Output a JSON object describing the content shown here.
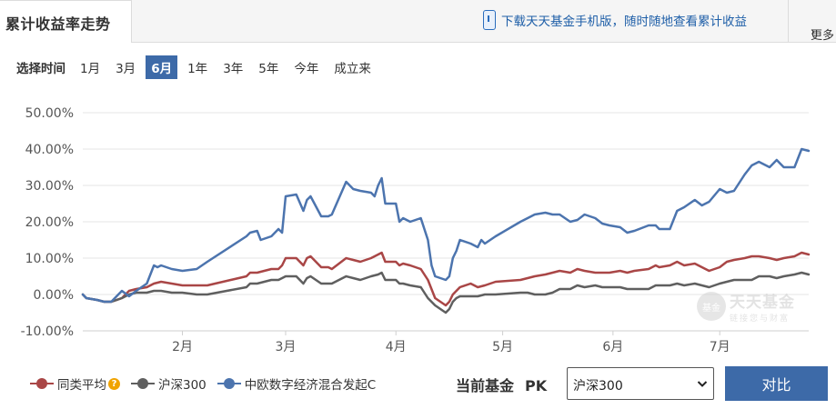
{
  "header": {
    "title": "累计收益率走势",
    "download_text": "下载天天基金手机版，随时随地查看累计收益",
    "more_label": "更多"
  },
  "timebar": {
    "label": "选择时间",
    "options": [
      "1月",
      "3月",
      "6月",
      "1年",
      "3年",
      "5年",
      "今年",
      "成立来"
    ],
    "selected": "6月"
  },
  "compare": {
    "current_label": "当前基金",
    "pk_label": "PK",
    "selected_index": "沪深300",
    "button_label": "对比"
  },
  "watermark": {
    "name": "天天基金",
    "logo": "基金",
    "slogan": "链接您与财富"
  },
  "colors": {
    "peer": "#a94646",
    "index": "#5f5f5f",
    "fund": "#4c74ae",
    "accent": "#3d6aa8"
  },
  "icons": {
    "download": "phone-icon",
    "help": "question-circle-icon",
    "dropdown": "chevron-down-icon"
  },
  "chart_data": {
    "type": "line",
    "x_type": "date",
    "xlim": [
      "2024-01-04",
      "2024-07-26"
    ],
    "ylim": [
      -10,
      50
    ],
    "ytick_step": 10,
    "yticks": [
      "-10.00%",
      "0.00%",
      "10.00%",
      "20.00%",
      "30.00%",
      "40.00%",
      "50.00%"
    ],
    "xticks": [
      {
        "label": "2月",
        "date": "2024-02-01"
      },
      {
        "label": "3月",
        "date": "2024-03-01"
      },
      {
        "label": "4月",
        "date": "2024-04-01"
      },
      {
        "label": "5月",
        "date": "2024-05-01"
      },
      {
        "label": "6月",
        "date": "2024-06-01"
      },
      {
        "label": "7月",
        "date": "2024-07-01"
      }
    ],
    "grid": true,
    "legend_position": "bottom-left",
    "series": [
      {
        "name": "同类平均",
        "color": "#a94646",
        "points": [
          [
            "2024-01-04",
            0
          ],
          [
            "2024-01-05",
            -1
          ],
          [
            "2024-01-08",
            -1.5
          ],
          [
            "2024-01-10",
            -2
          ],
          [
            "2024-01-12",
            -2
          ],
          [
            "2024-01-15",
            -1
          ],
          [
            "2024-01-17",
            1
          ],
          [
            "2024-01-19",
            1.5
          ],
          [
            "2024-01-22",
            2
          ],
          [
            "2024-01-24",
            3
          ],
          [
            "2024-01-26",
            3.5
          ],
          [
            "2024-01-29",
            3
          ],
          [
            "2024-02-01",
            2.5
          ],
          [
            "2024-02-05",
            2.5
          ],
          [
            "2024-02-08",
            2.5
          ],
          [
            "2024-02-19",
            5
          ],
          [
            "2024-02-20",
            6
          ],
          [
            "2024-02-22",
            6
          ],
          [
            "2024-02-26",
            7
          ],
          [
            "2024-02-28",
            7
          ],
          [
            "2024-02-29",
            8
          ],
          [
            "2024-03-01",
            10
          ],
          [
            "2024-03-04",
            10
          ],
          [
            "2024-03-06",
            8
          ],
          [
            "2024-03-07",
            10
          ],
          [
            "2024-03-08",
            10.5
          ],
          [
            "2024-03-11",
            7.5
          ],
          [
            "2024-03-13",
            7.5
          ],
          [
            "2024-03-14",
            7
          ],
          [
            "2024-03-18",
            10
          ],
          [
            "2024-03-20",
            9.5
          ],
          [
            "2024-03-22",
            9
          ],
          [
            "2024-03-25",
            10
          ],
          [
            "2024-03-27",
            11
          ],
          [
            "2024-03-28",
            11.5
          ],
          [
            "2024-03-29",
            9
          ],
          [
            "2024-04-01",
            9
          ],
          [
            "2024-04-02",
            8
          ],
          [
            "2024-04-03",
            8.5
          ],
          [
            "2024-04-05",
            8
          ],
          [
            "2024-04-08",
            7
          ],
          [
            "2024-04-10",
            4
          ],
          [
            "2024-04-12",
            -1
          ],
          [
            "2024-04-15",
            -3
          ],
          [
            "2024-04-16",
            -2
          ],
          [
            "2024-04-17",
            0
          ],
          [
            "2024-04-18",
            1
          ],
          [
            "2024-04-19",
            2
          ],
          [
            "2024-04-22",
            3
          ],
          [
            "2024-04-24",
            2
          ],
          [
            "2024-04-26",
            2.5
          ],
          [
            "2024-04-29",
            3.5
          ],
          [
            "2024-05-06",
            4
          ],
          [
            "2024-05-08",
            4.5
          ],
          [
            "2024-05-10",
            5
          ],
          [
            "2024-05-13",
            5.5
          ],
          [
            "2024-05-15",
            6
          ],
          [
            "2024-05-17",
            6.5
          ],
          [
            "2024-05-20",
            6
          ],
          [
            "2024-05-22",
            7
          ],
          [
            "2024-05-24",
            6.5
          ],
          [
            "2024-05-27",
            6
          ],
          [
            "2024-05-29",
            6
          ],
          [
            "2024-05-31",
            6
          ],
          [
            "2024-06-03",
            6.5
          ],
          [
            "2024-06-05",
            6
          ],
          [
            "2024-06-07",
            6.5
          ],
          [
            "2024-06-11",
            7
          ],
          [
            "2024-06-13",
            8
          ],
          [
            "2024-06-14",
            7.5
          ],
          [
            "2024-06-17",
            8
          ],
          [
            "2024-06-19",
            9
          ],
          [
            "2024-06-21",
            8
          ],
          [
            "2024-06-24",
            8.5
          ],
          [
            "2024-06-26",
            7.5
          ],
          [
            "2024-06-28",
            6.5
          ],
          [
            "2024-07-01",
            7.5
          ],
          [
            "2024-07-03",
            9
          ],
          [
            "2024-07-05",
            9.5
          ],
          [
            "2024-07-08",
            10
          ],
          [
            "2024-07-10",
            10.5
          ],
          [
            "2024-07-12",
            10.5
          ],
          [
            "2024-07-15",
            10
          ],
          [
            "2024-07-17",
            9.5
          ],
          [
            "2024-07-19",
            10
          ],
          [
            "2024-07-22",
            10.5
          ],
          [
            "2024-07-24",
            11.5
          ],
          [
            "2024-07-26",
            11
          ]
        ]
      },
      {
        "name": "沪深300",
        "color": "#5f5f5f",
        "points": [
          [
            "2024-01-04",
            0
          ],
          [
            "2024-01-05",
            -1
          ],
          [
            "2024-01-08",
            -1.5
          ],
          [
            "2024-01-10",
            -2
          ],
          [
            "2024-01-12",
            -2
          ],
          [
            "2024-01-15",
            -1
          ],
          [
            "2024-01-17",
            0
          ],
          [
            "2024-01-19",
            0.5
          ],
          [
            "2024-01-22",
            0.5
          ],
          [
            "2024-01-24",
            1
          ],
          [
            "2024-01-26",
            1
          ],
          [
            "2024-01-29",
            0.5
          ],
          [
            "2024-02-01",
            0.5
          ],
          [
            "2024-02-05",
            0
          ],
          [
            "2024-02-08",
            0
          ],
          [
            "2024-02-19",
            2
          ],
          [
            "2024-02-20",
            3
          ],
          [
            "2024-02-22",
            3
          ],
          [
            "2024-02-26",
            4
          ],
          [
            "2024-02-28",
            4
          ],
          [
            "2024-02-29",
            4.5
          ],
          [
            "2024-03-01",
            5
          ],
          [
            "2024-03-04",
            5
          ],
          [
            "2024-03-06",
            3
          ],
          [
            "2024-03-07",
            4.5
          ],
          [
            "2024-03-08",
            5
          ],
          [
            "2024-03-11",
            3
          ],
          [
            "2024-03-13",
            3
          ],
          [
            "2024-03-14",
            3
          ],
          [
            "2024-03-18",
            5
          ],
          [
            "2024-03-20",
            4.5
          ],
          [
            "2024-03-22",
            4
          ],
          [
            "2024-03-25",
            5
          ],
          [
            "2024-03-27",
            5.5
          ],
          [
            "2024-03-28",
            6
          ],
          [
            "2024-03-29",
            4
          ],
          [
            "2024-04-01",
            4
          ],
          [
            "2024-04-02",
            3
          ],
          [
            "2024-04-03",
            3
          ],
          [
            "2024-04-05",
            2.5
          ],
          [
            "2024-04-08",
            2
          ],
          [
            "2024-04-10",
            -1
          ],
          [
            "2024-04-12",
            -3
          ],
          [
            "2024-04-15",
            -5
          ],
          [
            "2024-04-16",
            -4
          ],
          [
            "2024-04-17",
            -2
          ],
          [
            "2024-04-18",
            -1
          ],
          [
            "2024-04-19",
            -0.5
          ],
          [
            "2024-04-22",
            -0.5
          ],
          [
            "2024-04-24",
            -0.5
          ],
          [
            "2024-04-26",
            0
          ],
          [
            "2024-04-29",
            0
          ],
          [
            "2024-05-06",
            0.5
          ],
          [
            "2024-05-08",
            0.5
          ],
          [
            "2024-05-10",
            0
          ],
          [
            "2024-05-13",
            0
          ],
          [
            "2024-05-15",
            0.5
          ],
          [
            "2024-05-17",
            1.5
          ],
          [
            "2024-05-20",
            1.5
          ],
          [
            "2024-05-22",
            2.5
          ],
          [
            "2024-05-24",
            2
          ],
          [
            "2024-05-27",
            2.5
          ],
          [
            "2024-05-29",
            2
          ],
          [
            "2024-05-31",
            2
          ],
          [
            "2024-06-03",
            2
          ],
          [
            "2024-06-05",
            1.5
          ],
          [
            "2024-06-07",
            1.5
          ],
          [
            "2024-06-11",
            1.5
          ],
          [
            "2024-06-13",
            2.5
          ],
          [
            "2024-06-14",
            2.5
          ],
          [
            "2024-06-17",
            2.5
          ],
          [
            "2024-06-19",
            3
          ],
          [
            "2024-06-21",
            2.5
          ],
          [
            "2024-06-24",
            3
          ],
          [
            "2024-06-26",
            2.5
          ],
          [
            "2024-06-28",
            2
          ],
          [
            "2024-07-01",
            3
          ],
          [
            "2024-07-03",
            3.5
          ],
          [
            "2024-07-05",
            4
          ],
          [
            "2024-07-08",
            4
          ],
          [
            "2024-07-10",
            4
          ],
          [
            "2024-07-12",
            5
          ],
          [
            "2024-07-15",
            5
          ],
          [
            "2024-07-17",
            4.5
          ],
          [
            "2024-07-19",
            5
          ],
          [
            "2024-07-22",
            5.5
          ],
          [
            "2024-07-24",
            6
          ],
          [
            "2024-07-26",
            5.5
          ]
        ]
      },
      {
        "name": "中欧数字经济混合发起C",
        "color": "#4c74ae",
        "points": [
          [
            "2024-01-04",
            0
          ],
          [
            "2024-01-05",
            -1
          ],
          [
            "2024-01-08",
            -1.5
          ],
          [
            "2024-01-10",
            -2
          ],
          [
            "2024-01-12",
            -2
          ],
          [
            "2024-01-15",
            1
          ],
          [
            "2024-01-17",
            -0.5
          ],
          [
            "2024-01-19",
            1
          ],
          [
            "2024-01-22",
            3
          ],
          [
            "2024-01-24",
            8
          ],
          [
            "2024-01-25",
            7.5
          ],
          [
            "2024-01-26",
            8
          ],
          [
            "2024-01-29",
            7
          ],
          [
            "2024-02-01",
            6.5
          ],
          [
            "2024-02-05",
            7
          ],
          [
            "2024-02-08",
            9
          ],
          [
            "2024-02-19",
            16
          ],
          [
            "2024-02-20",
            17
          ],
          [
            "2024-02-22",
            17.5
          ],
          [
            "2024-02-23",
            15
          ],
          [
            "2024-02-26",
            16
          ],
          [
            "2024-02-28",
            18
          ],
          [
            "2024-02-29",
            17
          ],
          [
            "2024-03-01",
            27
          ],
          [
            "2024-03-04",
            27.5
          ],
          [
            "2024-03-06",
            23
          ],
          [
            "2024-03-07",
            26
          ],
          [
            "2024-03-08",
            27
          ],
          [
            "2024-03-11",
            21.5
          ],
          [
            "2024-03-13",
            21.5
          ],
          [
            "2024-03-14",
            22
          ],
          [
            "2024-03-18",
            31
          ],
          [
            "2024-03-20",
            29
          ],
          [
            "2024-03-22",
            28.5
          ],
          [
            "2024-03-25",
            28
          ],
          [
            "2024-03-26",
            27
          ],
          [
            "2024-03-27",
            30
          ],
          [
            "2024-03-28",
            32
          ],
          [
            "2024-03-29",
            25
          ],
          [
            "2024-04-01",
            25
          ],
          [
            "2024-04-02",
            20
          ],
          [
            "2024-04-03",
            21
          ],
          [
            "2024-04-05",
            20
          ],
          [
            "2024-04-08",
            21
          ],
          [
            "2024-04-10",
            15
          ],
          [
            "2024-04-11",
            8
          ],
          [
            "2024-04-12",
            5
          ],
          [
            "2024-04-15",
            4
          ],
          [
            "2024-04-16",
            5
          ],
          [
            "2024-04-17",
            10
          ],
          [
            "2024-04-18",
            12
          ],
          [
            "2024-04-19",
            15
          ],
          [
            "2024-04-22",
            14
          ],
          [
            "2024-04-24",
            13
          ],
          [
            "2024-04-25",
            15
          ],
          [
            "2024-04-26",
            14
          ],
          [
            "2024-04-29",
            16
          ],
          [
            "2024-05-06",
            20
          ],
          [
            "2024-05-08",
            21
          ],
          [
            "2024-05-10",
            22
          ],
          [
            "2024-05-13",
            22.5
          ],
          [
            "2024-05-15",
            22
          ],
          [
            "2024-05-17",
            22
          ],
          [
            "2024-05-20",
            20
          ],
          [
            "2024-05-22",
            20.5
          ],
          [
            "2024-05-24",
            22
          ],
          [
            "2024-05-27",
            21
          ],
          [
            "2024-05-29",
            19.5
          ],
          [
            "2024-05-31",
            19
          ],
          [
            "2024-06-03",
            18.5
          ],
          [
            "2024-06-05",
            17
          ],
          [
            "2024-06-07",
            17.5
          ],
          [
            "2024-06-11",
            19
          ],
          [
            "2024-06-13",
            19
          ],
          [
            "2024-06-14",
            18
          ],
          [
            "2024-06-17",
            18
          ],
          [
            "2024-06-19",
            23
          ],
          [
            "2024-06-21",
            24
          ],
          [
            "2024-06-24",
            26
          ],
          [
            "2024-06-26",
            24.5
          ],
          [
            "2024-06-28",
            25.5
          ],
          [
            "2024-07-01",
            29
          ],
          [
            "2024-07-03",
            28
          ],
          [
            "2024-07-05",
            28.5
          ],
          [
            "2024-07-08",
            33
          ],
          [
            "2024-07-10",
            35.5
          ],
          [
            "2024-07-12",
            36.5
          ],
          [
            "2024-07-15",
            35
          ],
          [
            "2024-07-17",
            37
          ],
          [
            "2024-07-19",
            35
          ],
          [
            "2024-07-22",
            35
          ],
          [
            "2024-07-24",
            40
          ],
          [
            "2024-07-26",
            39.5
          ]
        ]
      }
    ]
  }
}
